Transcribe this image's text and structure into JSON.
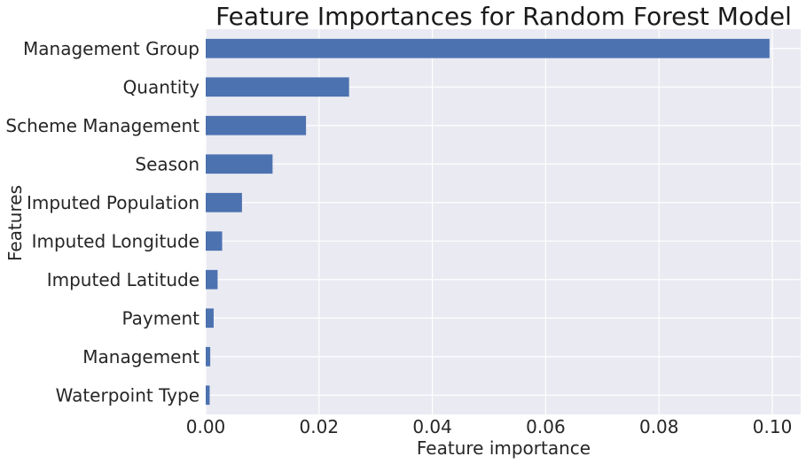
{
  "chart_data": {
    "type": "bar",
    "orientation": "horizontal",
    "title": "Feature Importances for Random Forest Model",
    "xlabel": "Feature importance",
    "ylabel": "Features",
    "categories": [
      "Management Group",
      "Quantity",
      "Scheme Management",
      "Season",
      "Imputed Population",
      "Imputed Longitude",
      "Imputed Latitude",
      "Payment",
      "Management",
      "Waterpoint Type"
    ],
    "values": [
      0.0995,
      0.0253,
      0.0177,
      0.0118,
      0.0064,
      0.0029,
      0.0021,
      0.0014,
      0.0008,
      0.0007
    ],
    "xlim": [
      0,
      0.105
    ],
    "xticks": [
      0.0,
      0.02,
      0.04,
      0.06,
      0.08,
      0.1
    ],
    "xtick_labels": [
      "0.00",
      "0.02",
      "0.04",
      "0.06",
      "0.08",
      "0.10"
    ],
    "grid": true,
    "legend": "none",
    "colors": {
      "bar": "#4c72b0",
      "plot_bg": "#eaeaf2",
      "grid": "#ffffff"
    }
  }
}
